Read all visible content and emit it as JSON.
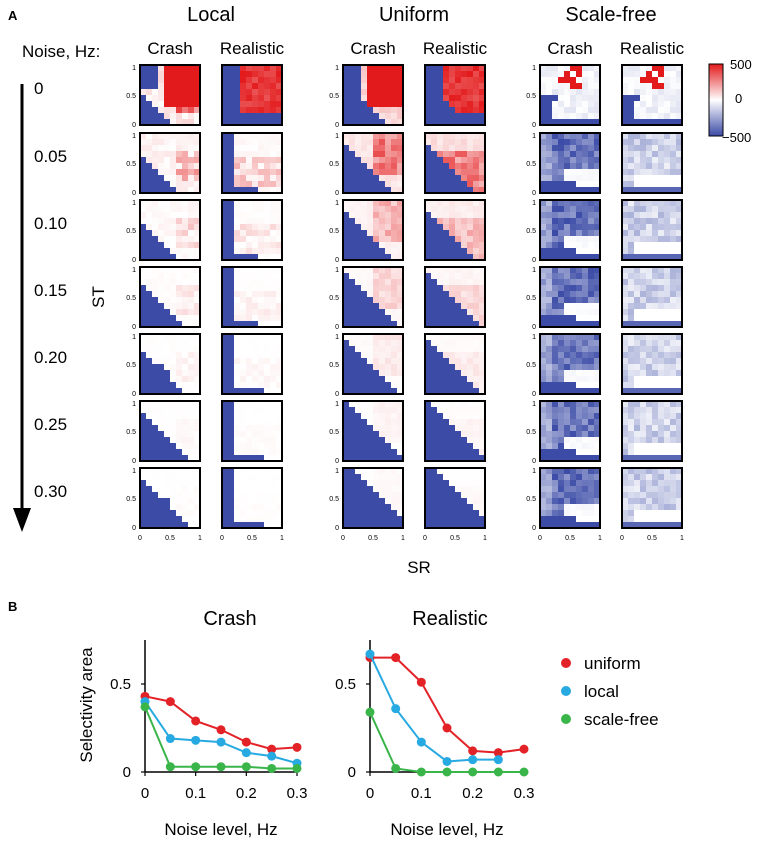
{
  "panel_a_label": "A",
  "panel_b_label": "B",
  "noise_header": "Noise, Hz:",
  "noise_levels": [
    "0",
    "0.05",
    "0.10",
    "0.15",
    "0.20",
    "0.25",
    "0.30"
  ],
  "groups": [
    {
      "title": "Local",
      "subtitles": [
        "Crash",
        "Realistic"
      ]
    },
    {
      "title": "Uniform",
      "subtitles": [
        "Crash",
        "Realistic"
      ]
    },
    {
      "title": "Scale-free",
      "subtitles": [
        "Crash",
        "Realistic"
      ]
    }
  ],
  "heatmap_axes": {
    "ylabel": "ST",
    "xlabel": "SR",
    "yticks": [
      "1",
      "0.5",
      "0"
    ],
    "xticks": [
      "0",
      "0.5",
      "1"
    ]
  },
  "colorbar": {
    "labels": [
      "500",
      "0",
      "−500"
    ],
    "max_color": "#e31a1c",
    "mid_color": "#ffffff",
    "min_color": "#3b4ba6"
  },
  "chart_data": [
    {
      "type": "line",
      "title": "Crash",
      "xlabel": "Noise level, Hz",
      "ylabel": "Selectivity area",
      "x": [
        0,
        0.05,
        0.1,
        0.15,
        0.2,
        0.25,
        0.3
      ],
      "xticks": [
        "0",
        "0.1",
        "0.2",
        "0.3"
      ],
      "yticks": [
        "0",
        "0.5"
      ],
      "xlim": [
        0,
        0.3
      ],
      "ylim": [
        0,
        0.75
      ],
      "series": [
        {
          "name": "uniform",
          "color": "#e32228",
          "values": [
            0.43,
            0.4,
            0.29,
            0.24,
            0.17,
            0.13,
            0.14
          ]
        },
        {
          "name": "local",
          "color": "#27a9e1",
          "values": [
            0.4,
            0.19,
            0.18,
            0.17,
            0.11,
            0.09,
            0.05
          ]
        },
        {
          "name": "scale-free",
          "color": "#39b54a",
          "values": [
            0.37,
            0.03,
            0.03,
            0.03,
            0.03,
            0.02,
            0.02
          ]
        }
      ]
    },
    {
      "type": "line",
      "title": "Realistic",
      "xlabel": "Noise level, Hz",
      "ylabel": "",
      "x": [
        0,
        0.05,
        0.1,
        0.15,
        0.2,
        0.25,
        0.3
      ],
      "xticks": [
        "0",
        "0.1",
        "0.2",
        "0.3"
      ],
      "yticks": [
        "0",
        "0.5"
      ],
      "xlim": [
        0,
        0.3
      ],
      "ylim": [
        0,
        0.75
      ],
      "series": [
        {
          "name": "uniform",
          "color": "#e32228",
          "values": [
            0.65,
            0.65,
            0.51,
            0.25,
            0.12,
            0.11,
            0.13
          ]
        },
        {
          "name": "local",
          "color": "#27a9e1",
          "values": [
            0.67,
            0.36,
            0.17,
            0.06,
            0.07,
            0.07,
            null
          ]
        },
        {
          "name": "scale-free",
          "color": "#39b54a",
          "values": [
            0.34,
            0.02,
            0.0,
            0.0,
            0.0,
            0.0,
            0.0
          ]
        }
      ]
    }
  ],
  "legend": {
    "placement": "right",
    "items": [
      {
        "label": "uniform",
        "color": "#e32228"
      },
      {
        "label": "local",
        "color": "#27a9e1"
      },
      {
        "label": "scale-free",
        "color": "#39b54a"
      }
    ]
  }
}
